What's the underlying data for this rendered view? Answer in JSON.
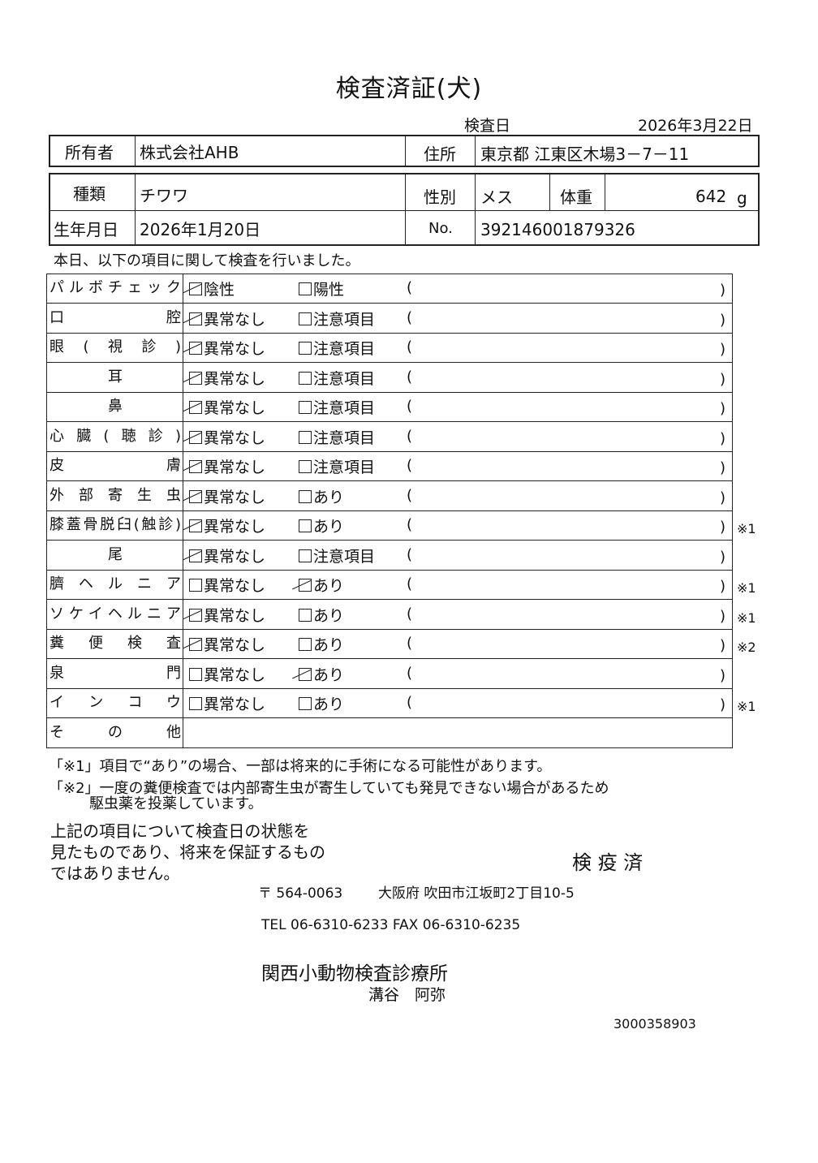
{
  "title": "検査済証(犬)",
  "exam_date_label": "検査日",
  "exam_date": "2026年3月22日",
  "owner": {
    "label": "所有者",
    "value": "株式会社AHB"
  },
  "address": {
    "label": "住所",
    "value": "東京都 江東区木場3－7－11"
  },
  "breed": {
    "label": "種類",
    "value": "チワワ"
  },
  "sex": {
    "label": "性別",
    "value": "メス"
  },
  "weight": {
    "label": "体重",
    "value": "642",
    "unit": "g"
  },
  "birth": {
    "label": "生年月日",
    "value": "2026年1月20日"
  },
  "number": {
    "label": "No.",
    "value": "392146001879326"
  },
  "intro": "本日、以下の項目に関して検査を行いました。",
  "paren_open": "(",
  "paren_close": ")",
  "rows": [
    {
      "label": "パルボチェック",
      "opt1": "陰性",
      "opt2": "陽性",
      "checked": 1,
      "note": ""
    },
    {
      "label": "口腔",
      "opt1": "異常なし",
      "opt2": "注意項目",
      "checked": 1,
      "note": ""
    },
    {
      "label": "眼(視診)",
      "opt1": "異常なし",
      "opt2": "注意項目",
      "checked": 1,
      "note": ""
    },
    {
      "label": "耳",
      "opt1": "異常なし",
      "opt2": "注意項目",
      "checked": 1,
      "note": ""
    },
    {
      "label": "鼻",
      "opt1": "異常なし",
      "opt2": "注意項目",
      "checked": 1,
      "note": ""
    },
    {
      "label": "心臓(聴診)",
      "opt1": "異常なし",
      "opt2": "注意項目",
      "checked": 1,
      "note": ""
    },
    {
      "label": "皮膚",
      "opt1": "異常なし",
      "opt2": "注意項目",
      "checked": 1,
      "note": ""
    },
    {
      "label": "外部寄生虫",
      "opt1": "異常なし",
      "opt2": "あり",
      "checked": 1,
      "note": ""
    },
    {
      "label": "膝蓋骨脱臼(触診)",
      "opt1": "異常なし",
      "opt2": "あり",
      "checked": 1,
      "note": "※1"
    },
    {
      "label": "尾",
      "opt1": "異常なし",
      "opt2": "注意項目",
      "checked": 1,
      "note": ""
    },
    {
      "label": "臍ヘルニア",
      "opt1": "異常なし",
      "opt2": "あり",
      "checked": 2,
      "note": "※1"
    },
    {
      "label": "ソケイヘルニア",
      "opt1": "異常なし",
      "opt2": "あり",
      "checked": 1,
      "note": "※1"
    },
    {
      "label": "糞便検査",
      "opt1": "異常なし",
      "opt2": "あり",
      "checked": 1,
      "note": "※2"
    },
    {
      "label": "泉門",
      "opt1": "異常なし",
      "opt2": "あり",
      "checked": 2,
      "note": ""
    },
    {
      "label": "インコウ",
      "opt1": "異常なし",
      "opt2": "あり",
      "checked": 0,
      "note": "※1"
    }
  ],
  "other_label": "その他",
  "footnote1": "「※1」項目で“あり”の場合、一部は将来的に手術になる可能性があります。",
  "footnote2_line1": "「※2」一度の糞便検査では内部寄生虫が寄生していても発見できない場合があるため",
  "footnote2_line2": "駆虫薬を投薬しています。",
  "disclaimer": [
    "上記の項目について検査日の状態を",
    "見たものであり、将来を保証するもの",
    "ではありません。"
  ],
  "stamp": "検 疫 済",
  "postal": "〒 564-0063",
  "clinic_address": "大阪府 吹田市江坂町2丁目10-5",
  "tel_fax": "TEL 06-6310-6233   FAX 06-6310-6235",
  "clinic_name": "関西小動物検査診療所",
  "doctor": "溝谷　阿弥",
  "doc_id": "3000358903"
}
